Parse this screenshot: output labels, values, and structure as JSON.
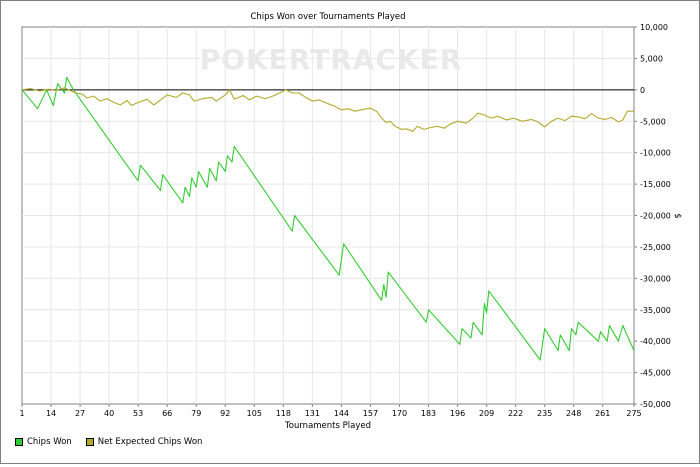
{
  "chart_data": {
    "type": "line",
    "title": "Chips Won over Tournaments Played",
    "xlabel": "Tournaments Played",
    "ylabel": "$",
    "watermark": "POKERTRACKER",
    "xlim": [
      1,
      275
    ],
    "ylim": [
      -50000,
      10000
    ],
    "x_ticks": [
      1,
      14,
      27,
      40,
      53,
      66,
      79,
      92,
      105,
      118,
      131,
      144,
      157,
      170,
      183,
      196,
      209,
      222,
      235,
      248,
      261,
      275
    ],
    "y_ticks": [
      10000,
      5000,
      0,
      -5000,
      -10000,
      -15000,
      -20000,
      -25000,
      -30000,
      -35000,
      -40000,
      -45000,
      -50000
    ],
    "y_tick_labels": [
      "10,000",
      "5,000",
      "0",
      "-5,000",
      "-10,000",
      "-15,000",
      "-20,000",
      "-25,000",
      "-30,000",
      "-35,000",
      "-40,000",
      "-45,000",
      "-50,000"
    ],
    "grid": true,
    "legend_position": "bottom-left",
    "series": [
      {
        "name": "Chips Won",
        "color": "#33cc33",
        "points": [
          [
            1,
            0
          ],
          [
            8,
            -3000
          ],
          [
            12,
            0
          ],
          [
            15,
            -2500
          ],
          [
            17,
            1000
          ],
          [
            20,
            -500
          ],
          [
            21,
            2000
          ],
          [
            24,
            0
          ],
          [
            53,
            -14500
          ],
          [
            54,
            -12000
          ],
          [
            63,
            -16000
          ],
          [
            64,
            -13500
          ],
          [
            73,
            -18000
          ],
          [
            74,
            -15500
          ],
          [
            76,
            -17000
          ],
          [
            77,
            -14000
          ],
          [
            79,
            -15500
          ],
          [
            80,
            -13000
          ],
          [
            84,
            -15500
          ],
          [
            85,
            -12500
          ],
          [
            88,
            -14500
          ],
          [
            89,
            -11500
          ],
          [
            92,
            -13000
          ],
          [
            93,
            -10500
          ],
          [
            95,
            -11500
          ],
          [
            96,
            -9000
          ],
          [
            122,
            -22500
          ],
          [
            123,
            -20000
          ],
          [
            143,
            -29500
          ],
          [
            145,
            -24500
          ],
          [
            162,
            -33500
          ],
          [
            163,
            -31000
          ],
          [
            164,
            -33000
          ],
          [
            165,
            -29000
          ],
          [
            182,
            -37000
          ],
          [
            183,
            -35000
          ],
          [
            197,
            -40500
          ],
          [
            198,
            -38000
          ],
          [
            202,
            -39500
          ],
          [
            203,
            -37000
          ],
          [
            207,
            -39000
          ],
          [
            208,
            -34000
          ],
          [
            209,
            -35500
          ],
          [
            210,
            -32000
          ],
          [
            233,
            -43000
          ],
          [
            235,
            -38000
          ],
          [
            241,
            -41500
          ],
          [
            242,
            -39000
          ],
          [
            246,
            -41500
          ],
          [
            247,
            -38000
          ],
          [
            249,
            -39000
          ],
          [
            250,
            -37000
          ],
          [
            259,
            -40000
          ],
          [
            260,
            -38500
          ],
          [
            263,
            -40000
          ],
          [
            264,
            -37500
          ],
          [
            268,
            -40000
          ],
          [
            270,
            -37500
          ],
          [
            275,
            -41500
          ]
        ]
      },
      {
        "name": "Net Expected Chips Won",
        "color": "#b5a92c",
        "points": [
          [
            1,
            0
          ],
          [
            5,
            200
          ],
          [
            9,
            -200
          ],
          [
            13,
            100
          ],
          [
            16,
            -100
          ],
          [
            20,
            300
          ],
          [
            25,
            -500
          ],
          [
            28,
            -700
          ],
          [
            30,
            -1300
          ],
          [
            33,
            -1000
          ],
          [
            36,
            -1800
          ],
          [
            39,
            -1400
          ],
          [
            42,
            -2000
          ],
          [
            45,
            -2400
          ],
          [
            48,
            -1700
          ],
          [
            50,
            -2500
          ],
          [
            53,
            -2000
          ],
          [
            57,
            -1500
          ],
          [
            60,
            -2400
          ],
          [
            63,
            -1600
          ],
          [
            66,
            -800
          ],
          [
            70,
            -1200
          ],
          [
            73,
            -500
          ],
          [
            76,
            -800
          ],
          [
            78,
            -1800
          ],
          [
            82,
            -1400
          ],
          [
            86,
            -1200
          ],
          [
            88,
            -1800
          ],
          [
            92,
            -800
          ],
          [
            94,
            0
          ],
          [
            96,
            -1500
          ],
          [
            100,
            -900
          ],
          [
            103,
            -1600
          ],
          [
            106,
            -1000
          ],
          [
            110,
            -1400
          ],
          [
            114,
            -900
          ],
          [
            117,
            -400
          ],
          [
            119,
            0
          ],
          [
            122,
            -500
          ],
          [
            125,
            -500
          ],
          [
            128,
            -1200
          ],
          [
            131,
            -1800
          ],
          [
            134,
            -1600
          ],
          [
            138,
            -2200
          ],
          [
            141,
            -2600
          ],
          [
            144,
            -3200
          ],
          [
            147,
            -3000
          ],
          [
            150,
            -3400
          ],
          [
            154,
            -3100
          ],
          [
            157,
            -2900
          ],
          [
            160,
            -3500
          ],
          [
            162,
            -4500
          ],
          [
            164,
            -5200
          ],
          [
            166,
            -5000
          ],
          [
            168,
            -5800
          ],
          [
            171,
            -6300
          ],
          [
            173,
            -6200
          ],
          [
            176,
            -6600
          ],
          [
            178,
            -5800
          ],
          [
            181,
            -6300
          ],
          [
            184,
            -6000
          ],
          [
            187,
            -5800
          ],
          [
            190,
            -6100
          ],
          [
            193,
            -5400
          ],
          [
            196,
            -5000
          ],
          [
            200,
            -5300
          ],
          [
            203,
            -4500
          ],
          [
            205,
            -3700
          ],
          [
            208,
            -4000
          ],
          [
            211,
            -4500
          ],
          [
            214,
            -4200
          ],
          [
            218,
            -4800
          ],
          [
            221,
            -4500
          ],
          [
            225,
            -5000
          ],
          [
            229,
            -4700
          ],
          [
            232,
            -5100
          ],
          [
            235,
            -5900
          ],
          [
            238,
            -5000
          ],
          [
            241,
            -4500
          ],
          [
            244,
            -4900
          ],
          [
            247,
            -4200
          ],
          [
            250,
            -4300
          ],
          [
            253,
            -4600
          ],
          [
            256,
            -3800
          ],
          [
            259,
            -4500
          ],
          [
            262,
            -4700
          ],
          [
            265,
            -4400
          ],
          [
            268,
            -5100
          ],
          [
            270,
            -4800
          ],
          [
            272,
            -3400
          ],
          [
            275,
            -3400
          ]
        ]
      }
    ]
  }
}
